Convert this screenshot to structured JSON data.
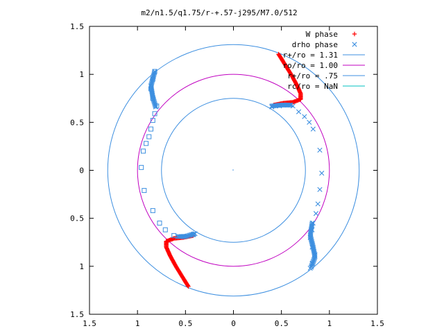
{
  "chart_data": {
    "type": "scatter",
    "title": "m2/n1.5/q1.75/r-+.57-j295/M7.0/512",
    "xlabel": "",
    "ylabel": "",
    "xlim": [
      -1.5,
      1.5
    ],
    "ylim": [
      -1.5,
      1.5
    ],
    "xticks": [
      -1.5,
      -1,
      -0.5,
      0,
      0.5,
      1,
      1.5
    ],
    "yticks": [
      -1.5,
      -1,
      -0.5,
      0,
      0.5,
      1,
      1.5
    ],
    "xtick_labels": [
      "1.5",
      "1",
      "0.5",
      "0",
      "0.5",
      "1",
      "1.5"
    ],
    "ytick_labels": [
      "1.5",
      "1",
      "0.5",
      "0",
      "0.5",
      "1",
      "1.5"
    ],
    "grid": false,
    "legend_position": "top-right",
    "series": [
      {
        "name": "W phase",
        "marker": "plus",
        "color": "#ff0000",
        "arms": [
          [
            [
              0.47,
              1.21
            ],
            [
              0.52,
              1.13
            ],
            [
              0.6,
              1.0
            ],
            [
              0.66,
              0.89
            ],
            [
              0.7,
              0.8
            ],
            [
              0.7,
              0.74
            ],
            [
              0.62,
              0.71
            ],
            [
              0.52,
              0.7
            ],
            [
              0.42,
              0.68
            ]
          ],
          [
            [
              -0.47,
              -1.21
            ],
            [
              -0.52,
              -1.13
            ],
            [
              -0.6,
              -1.0
            ],
            [
              -0.66,
              -0.89
            ],
            [
              -0.7,
              -0.8
            ],
            [
              -0.7,
              -0.74
            ],
            [
              -0.62,
              -0.71
            ],
            [
              -0.52,
              -0.7
            ],
            [
              -0.42,
              -0.68
            ]
          ]
        ]
      },
      {
        "name": "drho phase",
        "marker": "cross",
        "color": "#3d8fe0",
        "arms": [
          [
            [
              0.62,
              0.67
            ],
            [
              0.68,
              0.61
            ],
            [
              0.74,
              0.56
            ],
            [
              0.79,
              0.5
            ],
            [
              0.83,
              0.43
            ],
            [
              0.9,
              0.21
            ],
            [
              0.92,
              -0.03
            ],
            [
              0.9,
              -0.2
            ],
            [
              0.88,
              -0.35
            ],
            [
              0.86,
              -0.45
            ],
            [
              0.83,
              -0.55
            ],
            [
              0.82,
              -0.62
            ],
            [
              0.8,
              -0.7
            ],
            [
              0.82,
              -0.8
            ],
            [
              0.85,
              -0.88
            ],
            [
              0.82,
              -0.97
            ],
            [
              0.8,
              -1.02
            ]
          ],
          [
            [
              0.4,
              0.66
            ],
            [
              0.48,
              0.67
            ],
            [
              0.56,
              0.68
            ]
          ]
        ]
      },
      {
        "name": "",
        "marker": "square",
        "color": "#3d8fe0",
        "arms": [
          [
            [
              -0.82,
              1.03
            ],
            [
              -0.84,
              0.95
            ],
            [
              -0.86,
              0.85
            ],
            [
              -0.84,
              0.75
            ],
            [
              -0.8,
              0.67
            ],
            [
              -0.82,
              0.59
            ],
            [
              -0.84,
              0.52
            ],
            [
              -0.86,
              0.43
            ],
            [
              -0.88,
              0.35
            ],
            [
              -0.91,
              0.28
            ],
            [
              -0.94,
              0.2
            ],
            [
              -0.96,
              0.03
            ],
            [
              -0.93,
              -0.21
            ],
            [
              -0.84,
              -0.42
            ],
            [
              -0.77,
              -0.55
            ],
            [
              -0.71,
              -0.62
            ],
            [
              -0.62,
              -0.68
            ],
            [
              -0.52,
              -0.69
            ],
            [
              -0.42,
              -0.67
            ]
          ]
        ]
      },
      {
        "name": "r+/ro = 1.31",
        "type": "circle",
        "radius": 1.31,
        "color": "#3d8fe0"
      },
      {
        "name": "ro/ro = 1.00",
        "type": "circle",
        "radius": 1.0,
        "color": "#c000c0"
      },
      {
        "name": "r+/ro = .75",
        "type": "circle",
        "radius": 0.75,
        "color": "#3d8fe0"
      },
      {
        "name": "rc/ro = NaN",
        "type": "circle",
        "radius": null,
        "color": "#00c0c0"
      }
    ]
  }
}
